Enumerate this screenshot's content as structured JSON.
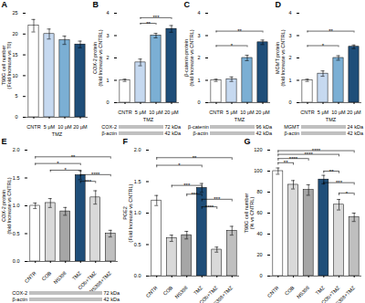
{
  "chart_data": [
    {
      "type": "bar",
      "title": "A",
      "categories": [
        "CNTR",
        "5 μM",
        "10 μM",
        "20 μM"
      ],
      "values": [
        22,
        20,
        18.5,
        17.5
      ],
      "errors": [
        1.5,
        1.2,
        1.0,
        0.8
      ],
      "colors": [
        "#ffffff",
        "#c6d9f0",
        "#7bafd4",
        "#1f4e79"
      ],
      "ylabel": "T98G cell number\n(Fold Increase vs T0)",
      "xlabel": "TMZ",
      "ylim": [
        0,
        25
      ],
      "yticks": [
        0,
        5,
        10,
        15,
        20,
        25
      ]
    },
    {
      "type": "bar",
      "title": "B",
      "categories": [
        "CNTR",
        "5 μM",
        "10 μM",
        "20 μM"
      ],
      "values": [
        1.0,
        1.8,
        3.0,
        3.3
      ],
      "errors": [
        0.05,
        0.15,
        0.1,
        0.15
      ],
      "colors": [
        "#ffffff",
        "#c6d9f0",
        "#7bafd4",
        "#1f4e79"
      ],
      "ylabel": "COX-2 protein\n(fold Increase vs CNTRL)",
      "xlabel": "TMZ",
      "ylim": [
        0,
        4
      ],
      "yticks": [
        0,
        1,
        2,
        3,
        4
      ],
      "annotations": [
        {
          "text": "**",
          "x1": "5 μM",
          "x2": "10 μM",
          "y": 3.55
        },
        {
          "text": "***",
          "x1": "5 μM",
          "x2": "20 μM",
          "y": 3.8
        },
        {
          "text": "COX-2"
        },
        {
          "text": "72 kDa"
        },
        {
          "text": "β-actin"
        },
        {
          "text": "42 kDa"
        }
      ]
    },
    {
      "type": "bar",
      "title": "C",
      "categories": [
        "CNTR",
        "5 μM",
        "10 μM",
        "20 μM"
      ],
      "values": [
        1.0,
        1.05,
        2.0,
        2.7
      ],
      "errors": [
        0.05,
        0.1,
        0.12,
        0.1
      ],
      "colors": [
        "#ffffff",
        "#c6d9f0",
        "#7bafd4",
        "#1f4e79"
      ],
      "ylabel": "β-catenin protein\n(fold Increase vs CNTRL)",
      "xlabel": "TMZ",
      "ylim": [
        0,
        4
      ],
      "yticks": [
        0,
        1,
        2,
        3,
        4
      ],
      "annotations": [
        {
          "text": "*",
          "x1": "CNTR",
          "x2": "10 μM",
          "y": 2.55
        },
        {
          "text": "**",
          "x1": "CNTR",
          "x2": "20 μM",
          "y": 3.2
        },
        {
          "text": "β-catenin"
        },
        {
          "text": "96 kDa"
        },
        {
          "text": "β-actin"
        },
        {
          "text": "42 kDa"
        }
      ]
    },
    {
      "type": "bar",
      "title": "D",
      "categories": [
        "CNTR",
        "5 μM",
        "10 μM",
        "20 μM"
      ],
      "values": [
        1.0,
        1.3,
        2.0,
        2.5
      ],
      "errors": [
        0.05,
        0.12,
        0.1,
        0.08
      ],
      "colors": [
        "#ffffff",
        "#c6d9f0",
        "#7bafd4",
        "#1f4e79"
      ],
      "ylabel": "MGMT protein\n(fold Increase vs CNTRL)",
      "xlabel": "TMZ",
      "ylim": [
        0,
        4
      ],
      "yticks": [
        0,
        1,
        2,
        3,
        4
      ],
      "annotations": [
        {
          "text": "*",
          "x1": "CNTR",
          "x2": "10 μM",
          "y": 2.55
        },
        {
          "text": "**",
          "x1": "CNTR",
          "x2": "20 μM",
          "y": 3.2
        },
        {
          "text": "MGMT"
        },
        {
          "text": "24 kDa"
        },
        {
          "text": "β-actin"
        },
        {
          "text": "42 kDa"
        }
      ]
    },
    {
      "type": "bar",
      "title": "E",
      "categories": [
        "CNTR",
        "COB",
        "NS398",
        "TMZ",
        "COb+TMZ",
        "NS398+TMZ"
      ],
      "values": [
        1.0,
        1.05,
        0.9,
        1.55,
        1.15,
        0.5
      ],
      "errors": [
        0.05,
        0.08,
        0.07,
        0.08,
        0.12,
        0.06
      ],
      "colors": [
        "#ffffff",
        "#d9d9d9",
        "#a6a6a6",
        "#1f4e79",
        "#d9d9d9",
        "#bfbfbf"
      ],
      "ylabel": "COX-2 protein\n(fold Increase vs CNTRL)",
      "ylim": [
        0,
        2.0
      ],
      "yticks": [
        {
          "value": 0,
          "label": "0.0"
        },
        {
          "value": 0.5,
          "label": "0.5"
        },
        {
          "value": 1,
          "label": "1.0"
        },
        {
          "value": 1.5,
          "label": "1.5"
        },
        {
          "value": 2,
          "label": "2.0"
        }
      ],
      "annotations": [
        {
          "text": "*",
          "x1": "CNTR",
          "x2": "TMZ",
          "y": 1.76
        },
        {
          "text": "**",
          "x1": "CNTR",
          "x2": "NS398+TMZ",
          "y": 1.88
        },
        {
          "text": "*",
          "x1": "COB",
          "x2": "TMZ",
          "y": 1.64
        },
        {
          "text": "***",
          "x1": "TMZ",
          "x2": "COb+TMZ",
          "y": 1.44
        },
        {
          "text": "****",
          "x1": "TMZ",
          "x2": "NS398+TMZ",
          "y": 1.56
        },
        {
          "text": "COX-2"
        },
        {
          "text": "72 kDa"
        },
        {
          "text": "β-actin"
        },
        {
          "text": "42 kDa"
        }
      ]
    },
    {
      "type": "bar",
      "title": "F",
      "categories": [
        "CNTR",
        "COB",
        "NS398",
        "TMZ",
        "COb+TMZ",
        "NS398+TMZ"
      ],
      "values": [
        1.2,
        0.6,
        0.65,
        1.4,
        0.42,
        0.72
      ],
      "errors": [
        0.08,
        0.05,
        0.06,
        0.07,
        0.04,
        0.07
      ],
      "colors": [
        "#ffffff",
        "#d9d9d9",
        "#a6a6a6",
        "#1f4e79",
        "#d9d9d9",
        "#bfbfbf"
      ],
      "ylabel": "PGE2\n(Fold Increase vs CNTRL)",
      "ylim": [
        0,
        2.0
      ],
      "yticks": [
        {
          "value": 0,
          "label": "0.0"
        },
        {
          "value": 0.5,
          "label": "0.5"
        },
        {
          "value": 1,
          "label": "1.0"
        },
        {
          "value": 1.5,
          "label": "1.5"
        },
        {
          "value": 2,
          "label": "2.0"
        }
      ],
      "annotations": [
        {
          "text": "**",
          "x1": "CNTR",
          "x2": "NS398+TMZ",
          "y": 1.88
        },
        {
          "text": "*",
          "x1": "CNTR",
          "x2": "TMZ",
          "y": 1.76
        },
        {
          "text": "***",
          "x1": "COB",
          "x2": "TMZ",
          "y": 1.44
        },
        {
          "text": "***",
          "x1": "NS398",
          "x2": "TMZ",
          "y": 1.3
        },
        {
          "text": "****",
          "x1": "TMZ",
          "x2": "COb+TMZ",
          "y": 1.1
        },
        {
          "text": "***",
          "x1": "TMZ",
          "x2": "NS398+TMZ",
          "y": 1.22
        }
      ]
    },
    {
      "type": "bar",
      "title": "G",
      "categories": [
        "CNTR",
        "COB",
        "NS398",
        "TMZ",
        "COb+TMZ",
        "NS398+TMZ"
      ],
      "values": [
        100,
        87,
        82,
        92,
        68,
        56
      ],
      "errors": [
        3,
        4,
        5,
        4,
        5,
        4
      ],
      "colors": [
        "#ffffff",
        "#d9d9d9",
        "#a6a6a6",
        "#1f4e79",
        "#d9d9d9",
        "#bfbfbf"
      ],
      "ylabel": "T98G cell number\n(% vs CNTRL)",
      "ylim": [
        0,
        120
      ],
      "yticks": [
        0,
        20,
        40,
        60,
        80,
        100,
        120
      ],
      "annotations": [
        {
          "text": "**",
          "x1": "CNTR",
          "x2": "COB",
          "y": 108
        },
        {
          "text": "****",
          "x1": "CNTR",
          "x2": "NS398",
          "y": 112
        },
        {
          "text": "****",
          "x1": "CNTR",
          "x2": "COb+TMZ",
          "y": 116
        },
        {
          "text": "****",
          "x1": "CNTR",
          "x2": "NS398+TMZ",
          "y": 119.5
        },
        {
          "text": "**",
          "x1": "TMZ",
          "x2": "COb+TMZ",
          "y": 100
        },
        {
          "text": "***",
          "x1": "TMZ",
          "x2": "NS398+TMZ",
          "y": 89
        },
        {
          "text": "*",
          "x1": "COb+TMZ",
          "x2": "NS398+TMZ",
          "y": 79
        }
      ]
    }
  ]
}
